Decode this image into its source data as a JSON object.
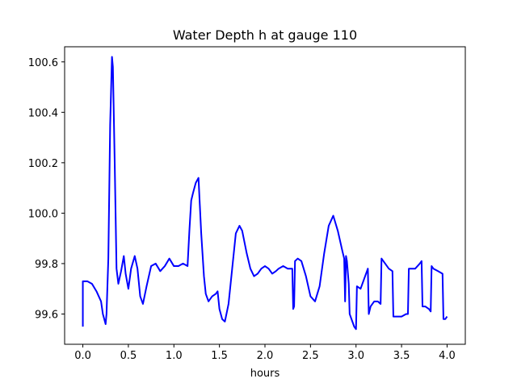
{
  "chart_data": {
    "type": "line",
    "title": "Water Depth h at gauge 110",
    "xlabel": "hours",
    "ylabel": "",
    "xlim": [
      -0.2,
      4.2
    ],
    "ylim": [
      99.48,
      100.66
    ],
    "xticks": [
      0.0,
      0.5,
      1.0,
      1.5,
      2.0,
      2.5,
      3.0,
      3.5,
      4.0
    ],
    "xtick_labels": [
      "0.0",
      "0.5",
      "1.0",
      "1.5",
      "2.0",
      "2.5",
      "3.0",
      "3.5",
      "4.0"
    ],
    "yticks": [
      99.6,
      99.8,
      100.0,
      100.2,
      100.4,
      100.6
    ],
    "ytick_labels": [
      "99.6",
      "99.8",
      "100.0",
      "100.2",
      "100.4",
      "100.6"
    ],
    "grid": false,
    "series": [
      {
        "color": "#0000ff",
        "x": [
          0.0,
          0.0,
          0.05,
          0.1,
          0.15,
          0.2,
          0.22,
          0.25,
          0.26,
          0.28,
          0.3,
          0.32,
          0.33,
          0.35,
          0.37,
          0.39,
          0.42,
          0.45,
          0.47,
          0.5,
          0.53,
          0.57,
          0.6,
          0.63,
          0.66,
          0.7,
          0.75,
          0.8,
          0.85,
          0.9,
          0.95,
          1.0,
          1.05,
          1.1,
          1.15,
          1.17,
          1.19,
          1.21,
          1.24,
          1.27,
          1.3,
          1.33,
          1.35,
          1.38,
          1.42,
          1.46,
          1.48,
          1.5,
          1.53,
          1.56,
          1.6,
          1.64,
          1.68,
          1.72,
          1.75,
          1.8,
          1.84,
          1.88,
          1.92,
          1.96,
          2.0,
          2.04,
          2.08,
          2.12,
          2.15,
          2.2,
          2.25,
          2.3,
          2.31,
          2.32,
          2.33,
          2.36,
          2.4,
          2.45,
          2.5,
          2.55,
          2.6,
          2.65,
          2.7,
          2.75,
          2.8,
          2.85,
          2.87,
          2.88,
          2.89,
          2.9,
          2.92,
          2.93,
          2.95,
          2.98,
          3.0,
          3.01,
          3.05,
          3.1,
          3.13,
          3.14,
          3.16,
          3.2,
          3.24,
          3.27,
          3.28,
          3.32,
          3.36,
          3.4,
          3.41,
          3.45,
          3.5,
          3.55,
          3.57,
          3.58,
          3.6,
          3.62,
          3.65,
          3.7,
          3.72,
          3.73,
          3.76,
          3.8,
          3.82,
          3.83,
          3.85,
          3.9,
          3.95,
          3.96,
          3.98,
          4.0
        ],
        "y": [
          99.55,
          99.73,
          99.73,
          99.72,
          99.69,
          99.65,
          99.6,
          99.56,
          99.6,
          99.82,
          100.35,
          100.62,
          100.58,
          100.2,
          99.78,
          99.72,
          99.77,
          99.83,
          99.76,
          99.7,
          99.78,
          99.83,
          99.78,
          99.67,
          99.64,
          99.71,
          99.79,
          99.8,
          99.77,
          99.79,
          99.82,
          99.79,
          99.79,
          99.8,
          99.79,
          99.93,
          100.05,
          100.08,
          100.12,
          100.14,
          99.92,
          99.75,
          99.68,
          99.65,
          99.67,
          99.68,
          99.69,
          99.62,
          99.58,
          99.57,
          99.64,
          99.78,
          99.92,
          99.95,
          99.93,
          99.84,
          99.78,
          99.75,
          99.76,
          99.78,
          99.79,
          99.78,
          99.76,
          99.77,
          99.78,
          99.79,
          99.78,
          99.78,
          99.62,
          99.63,
          99.81,
          99.82,
          99.81,
          99.75,
          99.67,
          99.65,
          99.71,
          99.84,
          99.95,
          99.99,
          99.93,
          99.85,
          99.82,
          99.65,
          99.83,
          99.81,
          99.72,
          99.6,
          99.58,
          99.55,
          99.54,
          99.71,
          99.7,
          99.75,
          99.78,
          99.6,
          99.63,
          99.65,
          99.65,
          99.64,
          99.82,
          99.8,
          99.78,
          99.77,
          99.59,
          99.59,
          99.59,
          99.6,
          99.6,
          99.78,
          99.78,
          99.78,
          99.78,
          99.8,
          99.81,
          99.63,
          99.63,
          99.62,
          99.61,
          99.79,
          99.78,
          99.77,
          99.76,
          99.58,
          99.58,
          99.59
        ]
      }
    ]
  }
}
